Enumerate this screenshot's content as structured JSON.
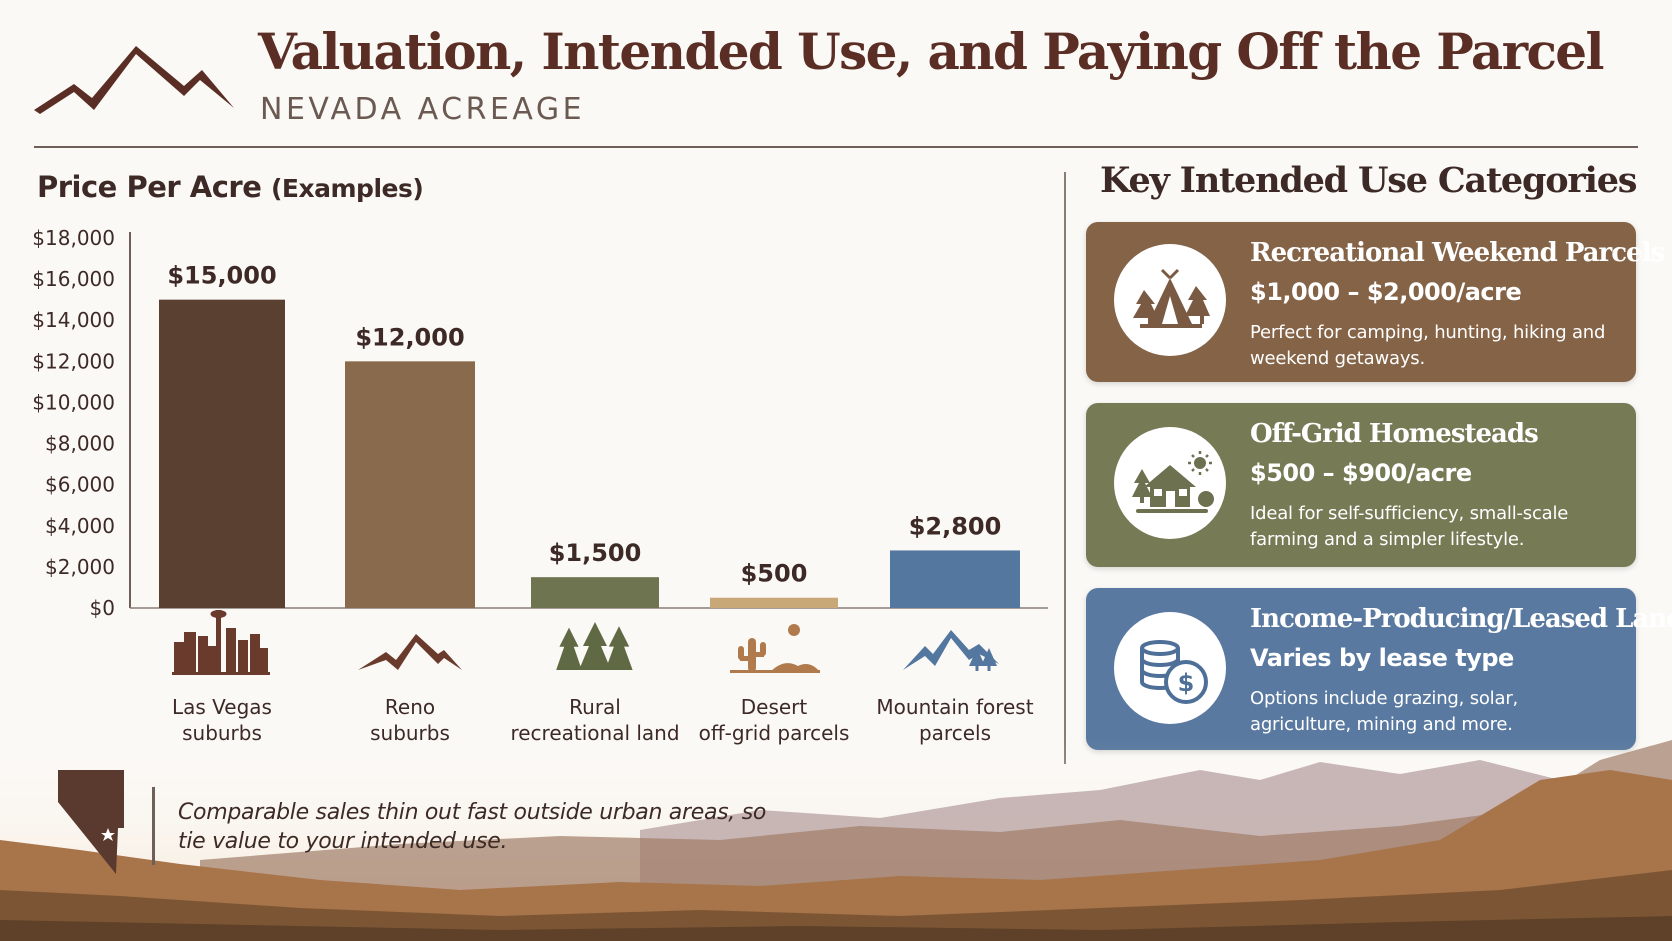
{
  "header": {
    "title": "Valuation, Intended Use, and Paying Off the Parcel",
    "subtitle": "NEVADA ACREAGE",
    "logo_icon": "mountain-logo-icon"
  },
  "chart_data": {
    "type": "bar",
    "title": "Price Per Acre",
    "title_suffix": "(Examples)",
    "categories": [
      "Las Vegas suburbs",
      "Reno suburbs",
      "Rural recreational land",
      "Desert off-grid parcels",
      "Mountain forest parcels"
    ],
    "category_lines": [
      [
        "Las Vegas",
        "suburbs"
      ],
      [
        "Reno",
        "suburbs"
      ],
      [
        "Rural",
        "recreational land"
      ],
      [
        "Desert",
        "off-grid parcels"
      ],
      [
        "Mountain forest",
        "parcels"
      ]
    ],
    "values": [
      15000,
      12000,
      1500,
      500,
      2800
    ],
    "data_labels": [
      "$15,000",
      "$12,000",
      "$1,500",
      "$500",
      "$2,800"
    ],
    "colors": [
      "#5a4030",
      "#8a6a4c",
      "#6f7450",
      "#c9a878",
      "#54779f"
    ],
    "icons": [
      "city-skyline-icon",
      "mountain-icon",
      "pine-trees-icon",
      "desert-cactus-icon",
      "mountain-forest-icon"
    ],
    "ylim": [
      0,
      18000
    ],
    "yticks": [
      0,
      2000,
      4000,
      6000,
      8000,
      10000,
      12000,
      14000,
      16000,
      18000
    ],
    "ytick_labels": [
      "$0",
      "$2,000",
      "$4,000",
      "$6,000",
      "$8,000",
      "$10,000",
      "$12,000",
      "$14,000",
      "$16,000",
      "$18,000"
    ],
    "xlabel": "",
    "ylabel": "",
    "grid": false,
    "legend": "none"
  },
  "categories_panel": {
    "heading": "Key Intended Use Categories",
    "cards": [
      {
        "title": "Recreational Weekend Parcels",
        "price": "$1,000 – $2,000/acre",
        "description": "Perfect for camping, hunting, hiking and weekend getaways.",
        "icon": "tent-trees-icon",
        "color": "#856347"
      },
      {
        "title": "Off-Grid Homesteads",
        "price": "$500 – $900/acre",
        "description": "Ideal for self-sufficiency, small-scale farming and a simpler lifestyle.",
        "icon": "homestead-icon",
        "color": "#767a55"
      },
      {
        "title": "Income-Producing/Leased Land",
        "price": "Varies by lease type",
        "description": "Options include grazing, solar, agriculture, mining and more.",
        "icon": "coins-dollar-icon",
        "color": "#5979a0"
      }
    ]
  },
  "footer": {
    "note_emphasis": "Comparable",
    "note_rest": " sales thin out fast outside urban areas, so tie value to your intended use.",
    "state_icon": "nevada-state-icon"
  }
}
